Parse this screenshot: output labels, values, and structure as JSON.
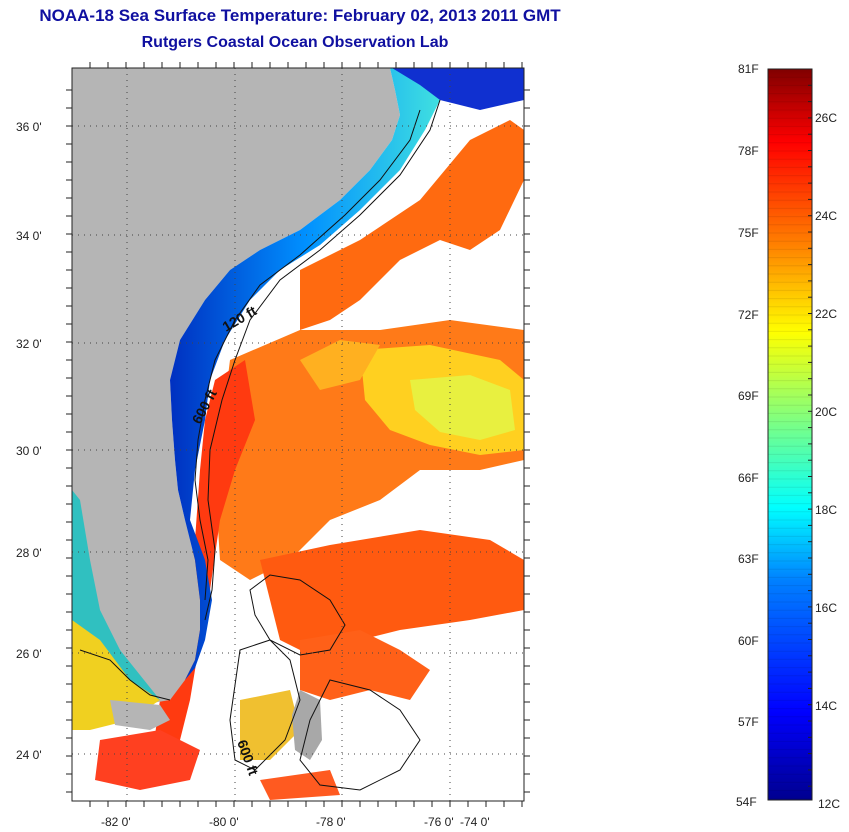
{
  "title": "NOAA-18 Sea Surface Temperature:  February 02, 2013 2011 GMT",
  "subtitle": "Rutgers Coastal Ocean Observation Lab",
  "lat_labels": [
    "36 0'",
    "34 0'",
    "32 0'",
    "30 0'",
    "28 0'",
    "26 0'",
    "24 0'"
  ],
  "lon_labels": [
    "-82 0'",
    "-80 0'",
    "-78 0'",
    "-76 0'",
    "-74 0'"
  ],
  "contour_labels": [
    "120 ft",
    "600 ft",
    "600 ft"
  ],
  "colorbar": {
    "f_labels": [
      "81F",
      "78F",
      "75F",
      "72F",
      "69F",
      "66F",
      "63F",
      "60F",
      "57F",
      "54F"
    ],
    "c_labels": [
      "26C",
      "24C",
      "22C",
      "20C",
      "18C",
      "16C",
      "14C",
      "12C"
    ],
    "range_c": [
      12,
      27
    ]
  },
  "colors": {
    "land": "#b5b5b5",
    "title": "#1010a0"
  }
}
